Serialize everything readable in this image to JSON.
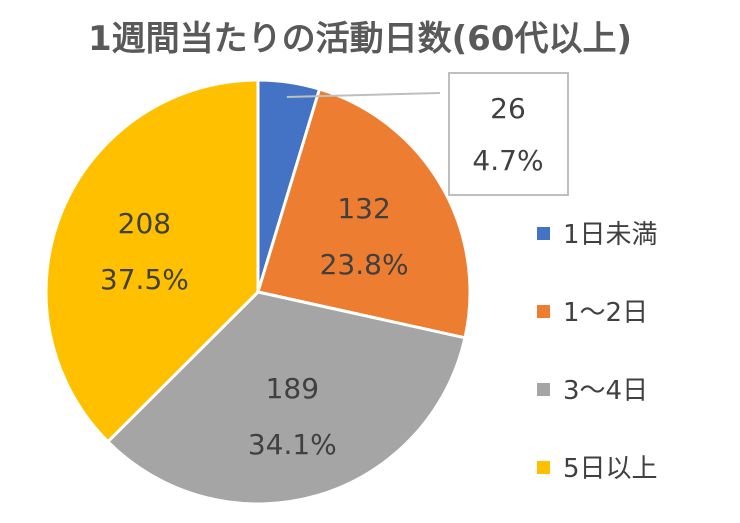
{
  "chart_data": {
    "type": "pie",
    "title": "1週間当たりの活動日数(60代以上)",
    "categories": [
      "1日未満",
      "1～2日",
      "3～4日",
      "5日以上"
    ],
    "values": [
      26,
      132,
      189,
      208
    ],
    "percent_labels": [
      "4.7%",
      "23.8%",
      "34.1%",
      "37.5%"
    ],
    "colors": [
      "#4472C4",
      "#ED7D31",
      "#A5A5A5",
      "#FFC000"
    ],
    "legend_position": "right",
    "start_angle": "12 o'clock",
    "direction": "clockwise"
  }
}
